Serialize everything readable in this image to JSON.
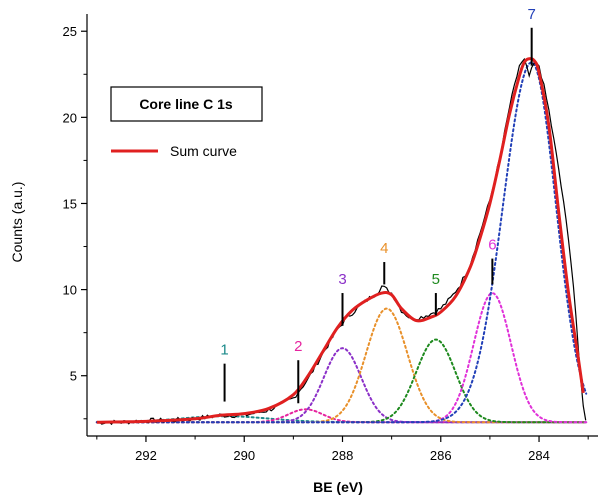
{
  "chart_data": {
    "type": "line",
    "title": "",
    "xlabel": "BE (eV)",
    "ylabel": "Counts (a.u.)",
    "xlim": [
      293.2,
      282.8
    ],
    "ylim": [
      1.5,
      26
    ],
    "x_reversed": true,
    "x_ticks": [
      292,
      290,
      288,
      286,
      284
    ],
    "y_ticks": [
      5,
      10,
      15,
      20,
      25
    ],
    "grid": false,
    "legend_position": "top-left",
    "box_label": "Core line C 1s",
    "background_level": 2.3,
    "peak_labels": [
      {
        "label": "1",
        "x": 290.4,
        "tick_y": [
          3.5,
          5.7
        ],
        "color": "#1b8a8a"
      },
      {
        "label": "2",
        "x": 288.9,
        "tick_y": [
          3.4,
          5.9
        ],
        "color": "#e6249f"
      },
      {
        "label": "3",
        "x": 288.0,
        "tick_y": [
          7.9,
          9.8
        ],
        "color": "#8b30c8"
      },
      {
        "label": "4",
        "x": 287.15,
        "tick_y": [
          10.3,
          11.6
        ],
        "color": "#e8902a"
      },
      {
        "label": "5",
        "x": 286.1,
        "tick_y": [
          8.5,
          9.8
        ],
        "color": "#1f8a1f"
      },
      {
        "label": "6",
        "x": 284.95,
        "tick_y": [
          10.3,
          11.8
        ],
        "color": "#e030d8"
      },
      {
        "label": "7",
        "x": 284.15,
        "tick_y": [
          23.0,
          25.2
        ],
        "color": "#2240b8"
      }
    ],
    "components": [
      {
        "id": 1,
        "center": 290.4,
        "height": 0.35,
        "sigma": 0.9,
        "color": "#1b8a8a"
      },
      {
        "id": 2,
        "center": 288.75,
        "height": 0.75,
        "sigma": 0.35,
        "color": "#e6249f"
      },
      {
        "id": 3,
        "center": 288.0,
        "height": 4.3,
        "sigma": 0.38,
        "color": "#8b30c8"
      },
      {
        "id": 4,
        "center": 287.1,
        "height": 6.6,
        "sigma": 0.42,
        "color": "#e8902a"
      },
      {
        "id": 5,
        "center": 286.1,
        "height": 4.8,
        "sigma": 0.4,
        "color": "#1f8a1f"
      },
      {
        "id": 6,
        "center": 284.95,
        "height": 7.5,
        "sigma": 0.38,
        "color": "#e030d8"
      },
      {
        "id": 7,
        "center": 284.15,
        "height": 20.9,
        "sigma": 0.58,
        "color": "#2240b8"
      }
    ],
    "series": [
      {
        "name": "Sum curve",
        "color": "#e02020",
        "x": [
          293.0,
          292.0,
          291.0,
          290.5,
          290.0,
          289.5,
          289.0,
          288.7,
          288.4,
          288.1,
          287.8,
          287.5,
          287.2,
          287.0,
          286.8,
          286.5,
          286.2,
          286.0,
          285.7,
          285.4,
          285.2,
          285.0,
          284.8,
          284.6,
          284.4,
          284.3,
          284.2,
          284.1,
          284.0,
          283.8,
          283.6,
          283.4,
          283.2,
          283.1
        ],
        "y": [
          2.3,
          2.35,
          2.5,
          2.7,
          2.8,
          3.1,
          3.9,
          5.0,
          6.4,
          7.8,
          8.8,
          9.4,
          9.8,
          9.7,
          8.9,
          8.2,
          8.4,
          8.7,
          9.6,
          11.3,
          13.0,
          15.0,
          17.5,
          20.2,
          22.4,
          23.2,
          23.4,
          23.3,
          22.6,
          19.5,
          14.5,
          9.8,
          6.0,
          4.0
        ]
      },
      {
        "name": "",
        "color": "#000000",
        "x": [
          293.0,
          292.5,
          292.0,
          291.5,
          291.0,
          290.5,
          290.0,
          289.5,
          289.0,
          288.7,
          288.4,
          288.1,
          287.9,
          287.7,
          287.5,
          287.3,
          287.2,
          287.1,
          287.0,
          286.9,
          286.8,
          286.6,
          286.4,
          286.2,
          286.0,
          285.8,
          285.6,
          285.4,
          285.2,
          285.0,
          284.8,
          284.6,
          284.5,
          284.4,
          284.3,
          284.2,
          284.1,
          284.0,
          283.9,
          283.8,
          283.6,
          283.4,
          283.3,
          283.2,
          283.1,
          283.0
        ],
        "y": [
          2.3,
          2.3,
          2.4,
          2.4,
          2.5,
          2.7,
          2.7,
          3.0,
          3.7,
          4.8,
          6.3,
          7.7,
          8.4,
          8.9,
          9.4,
          9.8,
          10.2,
          10.0,
          9.8,
          9.3,
          8.8,
          8.3,
          8.4,
          8.6,
          8.9,
          9.5,
          10.3,
          11.5,
          13.3,
          15.2,
          17.6,
          20.6,
          21.8,
          23.0,
          23.3,
          22.4,
          23.1,
          23.0,
          21.8,
          20.4,
          17.0,
          13.0,
          10.2,
          6.5,
          3.2,
          1.8
        ]
      }
    ]
  }
}
